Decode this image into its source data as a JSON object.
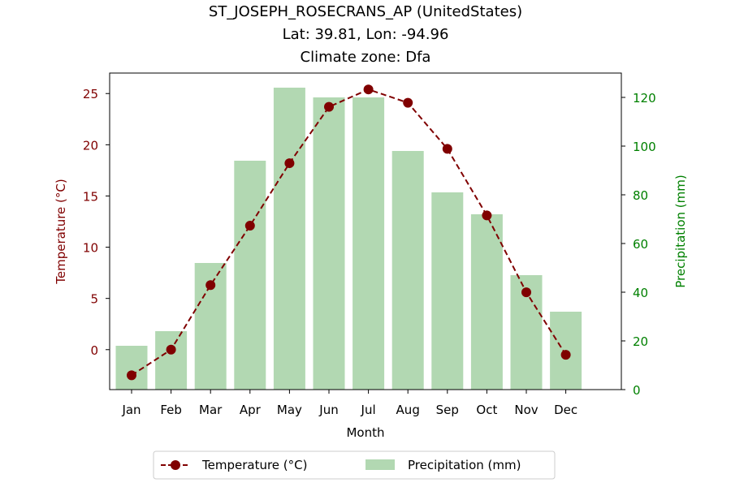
{
  "chart_data": {
    "type": "bar+line",
    "title_lines": [
      "ST_JOSEPH_ROSECRANS_AP (UnitedStates)",
      "Lat: 39.81, Lon: -94.96",
      "Climate zone: Dfa"
    ],
    "xlabel": "Month",
    "categories": [
      "Jan",
      "Feb",
      "Mar",
      "Apr",
      "May",
      "Jun",
      "Jul",
      "Aug",
      "Sep",
      "Oct",
      "Nov",
      "Dec"
    ],
    "temperature": {
      "name": "Temperature (°C)",
      "axis_label": "Temperature (°C)",
      "color": "#800000",
      "values": [
        -2.5,
        0.0,
        6.3,
        12.1,
        18.2,
        23.7,
        25.4,
        24.1,
        19.6,
        13.1,
        5.6,
        -0.5
      ],
      "ylim": [
        -3.9,
        27.0
      ],
      "ticks": [
        0,
        5,
        10,
        15,
        20,
        25
      ]
    },
    "precipitation": {
      "name": "Precipitation (mm)",
      "axis_label": "Precipitation (mm)",
      "color": "#008000",
      "bar_color": "#b2d8b2",
      "values": [
        18,
        24,
        52,
        94,
        124,
        120,
        120,
        98,
        81,
        72,
        47,
        32
      ],
      "ylim": [
        0,
        130
      ],
      "ticks": [
        0,
        20,
        40,
        60,
        80,
        100,
        120
      ]
    },
    "legend": {
      "placement": "bottom-center",
      "entries": [
        "Temperature (°C)",
        "Precipitation (mm)"
      ]
    }
  }
}
